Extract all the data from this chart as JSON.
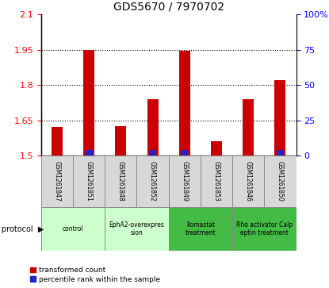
{
  "title": "GDS5670 / 7970702",
  "samples": [
    "GSM1261847",
    "GSM1261851",
    "GSM1261848",
    "GSM1261852",
    "GSM1261849",
    "GSM1261853",
    "GSM1261846",
    "GSM1261850"
  ],
  "red_values": [
    1.62,
    1.95,
    1.625,
    1.74,
    1.945,
    1.56,
    1.74,
    1.82
  ],
  "blue_heights": [
    0.022,
    0.022,
    0.0,
    0.022,
    0.022,
    0.0,
    0.0,
    0.022
  ],
  "blue_visible": [
    false,
    true,
    false,
    true,
    true,
    false,
    false,
    true
  ],
  "ylim_left": [
    1.5,
    2.1
  ],
  "yticks_left": [
    1.5,
    1.65,
    1.8,
    1.95,
    2.1
  ],
  "ytick_labels_left": [
    "1.5",
    "1.65",
    "1.8",
    "1.95",
    "2.1"
  ],
  "yticks_right_pct": [
    0,
    25,
    50,
    75,
    100
  ],
  "ytick_labels_right": [
    "0",
    "25",
    "50",
    "75",
    "100%"
  ],
  "dotted_lines": [
    1.65,
    1.8,
    1.95
  ],
  "bar_width": 0.35,
  "red_color": "#cc0000",
  "blue_color": "#2222cc",
  "base_value": 1.5,
  "bg_color": "#ffffff",
  "protocol_labels": [
    "control",
    "EphA2-overexpres\nsion",
    "Ilomastat\ntreatment",
    "Rho activator Calp\neptin treatment"
  ],
  "protocol_ranges": [
    [
      0,
      2
    ],
    [
      2,
      4
    ],
    [
      4,
      6
    ],
    [
      6,
      8
    ]
  ],
  "protocol_colors": [
    "#ccffcc",
    "#ccffcc",
    "#44bb44",
    "#44bb44"
  ],
  "legend_labels": [
    "transformed count",
    "percentile rank within the sample"
  ]
}
